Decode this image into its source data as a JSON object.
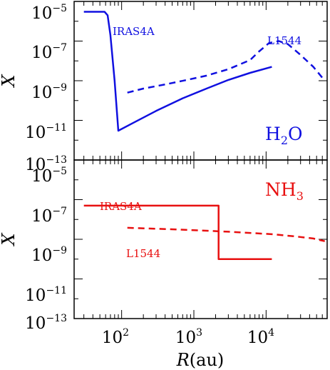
{
  "chart_data": [
    {
      "type": "line",
      "panel": "top",
      "xscale": "log",
      "yscale": "log",
      "xlim": [
        22,
        70000
      ],
      "ylim": [
        1e-13,
        1e-05
      ],
      "ylabel": "X",
      "yticks": [
        {
          "base": "10",
          "exp": "−5"
        },
        {
          "base": "10",
          "exp": "−7"
        },
        {
          "base": "10",
          "exp": "−9"
        },
        {
          "base": "10",
          "exp": "−11"
        },
        {
          "base": "10",
          "exp": "−13"
        }
      ],
      "species": {
        "main": "H",
        "sub": "2",
        "tail": "O"
      },
      "series": [
        {
          "name": "IRAS4A",
          "style": "solid",
          "color": "#1010e0",
          "x": [
            30,
            38,
            48,
            58,
            64,
            70,
            80,
            90,
            150,
            300,
            700,
            1500,
            3000,
            6000,
            12000
          ],
          "y": [
            3e-06,
            3e-06,
            3e-06,
            3e-06,
            2e-06,
            2e-07,
            1e-09,
            3e-12,
            8e-12,
            3e-11,
            1.3e-10,
            4e-10,
            1.1e-09,
            2.5e-09,
            5e-09
          ]
        },
        {
          "name": "L1544",
          "style": "dashed",
          "color": "#1010e0",
          "x": [
            120,
            200,
            400,
            800,
            1500,
            3000,
            6000,
            8000,
            11000,
            15000,
            20000,
            30000,
            45000,
            65000
          ],
          "y": [
            2.5e-10,
            4e-10,
            6.5e-10,
            1.1e-09,
            1.8e-09,
            3.8e-09,
            1.1e-08,
            3e-08,
            8e-08,
            1e-07,
            7e-08,
            2e-08,
            5e-09,
            1e-09
          ]
        }
      ]
    },
    {
      "type": "line",
      "panel": "bottom",
      "xscale": "log",
      "yscale": "log",
      "xlim": [
        22,
        70000
      ],
      "ylim": [
        1e-13,
        1e-05
      ],
      "xlabel": {
        "var": "R",
        "unit": "(au)"
      },
      "ylabel": "X",
      "xticks": [
        {
          "base": "10",
          "exp": "2"
        },
        {
          "base": "10",
          "exp": "3"
        },
        {
          "base": "10",
          "exp": "4"
        }
      ],
      "yticks": [
        {
          "base": "10",
          "exp": "−5"
        },
        {
          "base": "10",
          "exp": "−7"
        },
        {
          "base": "10",
          "exp": "−9"
        },
        {
          "base": "10",
          "exp": "−11"
        },
        {
          "base": "10",
          "exp": "−13"
        }
      ],
      "species": {
        "main": "NH",
        "sub": "3",
        "tail": ""
      },
      "series": [
        {
          "name": "IRAS4A",
          "style": "solid",
          "color": "#e81010",
          "x": [
            30,
            2200,
            2200,
            12000
          ],
          "y": [
            5e-08,
            5e-08,
            1e-10,
            1e-10
          ]
        },
        {
          "name": "L1544",
          "style": "dashed",
          "color": "#e81010",
          "x": [
            120,
            500,
            1500,
            3000,
            6000,
            12000,
            25000,
            45000,
            65000
          ],
          "y": [
            3.8e-09,
            3.2e-09,
            2.7e-09,
            2.4e-09,
            2.1e-09,
            1.8e-09,
            1.4e-09,
            1.1e-09,
            8e-10
          ]
        }
      ]
    }
  ]
}
